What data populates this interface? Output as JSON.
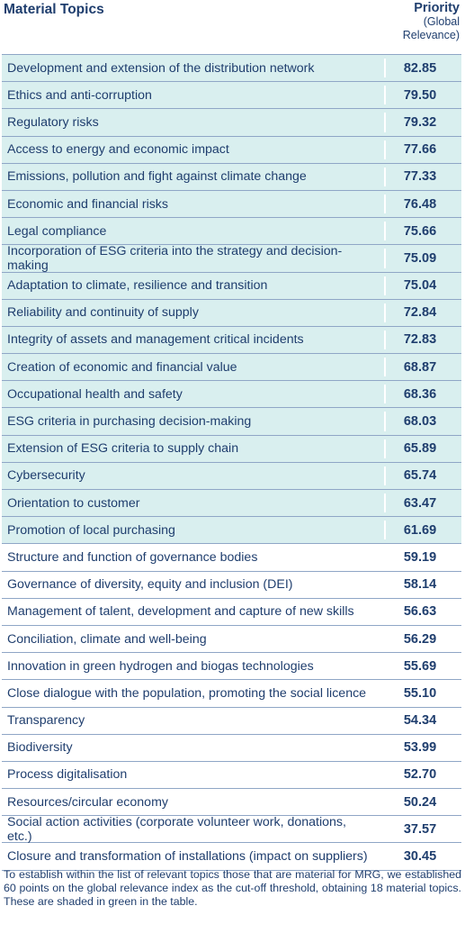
{
  "header": {
    "topics_label": "Material Topics",
    "priority_label": "Priority",
    "priority_sub1": "(Global",
    "priority_sub2": "Relevance)"
  },
  "rows": [
    {
      "topic": "Development and extension of the distribution network",
      "value": "82.85",
      "material": true
    },
    {
      "topic": "Ethics and anti-corruption",
      "value": "79.50",
      "material": true
    },
    {
      "topic": "Regulatory risks",
      "value": "79.32",
      "material": true
    },
    {
      "topic": "Access to energy and economic impact",
      "value": "77.66",
      "material": true
    },
    {
      "topic": "Emissions, pollution and fight against climate change",
      "value": "77.33",
      "material": true
    },
    {
      "topic": "Economic and financial risks",
      "value": "76.48",
      "material": true
    },
    {
      "topic": "Legal compliance",
      "value": "75.66",
      "material": true
    },
    {
      "topic": "Incorporation of ESG criteria into the strategy and decision-making",
      "value": "75.09",
      "material": true
    },
    {
      "topic": "Adaptation to climate, resilience and transition",
      "value": "75.04",
      "material": true
    },
    {
      "topic": "Reliability and continuity of supply",
      "value": "72.84",
      "material": true
    },
    {
      "topic": "Integrity of assets and management critical incidents",
      "value": "72.83",
      "material": true
    },
    {
      "topic": "Creation of economic and financial value",
      "value": "68.87",
      "material": true
    },
    {
      "topic": "Occupational health and safety",
      "value": "68.36",
      "material": true
    },
    {
      "topic": "ESG criteria in purchasing decision-making",
      "value": "68.03",
      "material": true
    },
    {
      "topic": "Extension of ESG criteria to supply chain",
      "value": "65.89",
      "material": true
    },
    {
      "topic": "Cybersecurity",
      "value": "65.74",
      "material": true
    },
    {
      "topic": "Orientation to customer",
      "value": "63.47",
      "material": true
    },
    {
      "topic": "Promotion of local purchasing",
      "value": "61.69",
      "material": true
    },
    {
      "topic": "Structure and function of governance bodies",
      "value": "59.19",
      "material": false
    },
    {
      "topic": "Governance of diversity, equity and inclusion (DEI)",
      "value": "58.14",
      "material": false
    },
    {
      "topic": "Management of talent, development and capture of new skills",
      "value": "56.63",
      "material": false
    },
    {
      "topic": "Conciliation, climate and well-being",
      "value": "56.29",
      "material": false
    },
    {
      "topic": "Innovation in green hydrogen and biogas technologies",
      "value": "55.69",
      "material": false
    },
    {
      "topic": "Close dialogue with the population, promoting the social licence",
      "value": "55.10",
      "material": false
    },
    {
      "topic": "Transparency",
      "value": "54.34",
      "material": false
    },
    {
      "topic": "Biodiversity",
      "value": "53.99",
      "material": false
    },
    {
      "topic": "Process digitalisation",
      "value": "52.70",
      "material": false
    },
    {
      "topic": "Resources/circular economy",
      "value": "50.24",
      "material": false
    },
    {
      "topic": "Social action activities (corporate volunteer work, donations, etc.)",
      "value": "37.57",
      "material": false
    },
    {
      "topic": "Closure and transformation of installations (impact on suppliers)",
      "value": "30.45",
      "material": false
    }
  ],
  "colors": {
    "text": "#1f3e6e",
    "shade": "#d9efef",
    "rule": "#8fa6c6"
  },
  "footnote": "To establish within the list of relevant topics those that are material for MRG, we established 60 points on the global relevance index as the cut-off threshold, obtaining 18 material topics. These are shaded in green in the table."
}
